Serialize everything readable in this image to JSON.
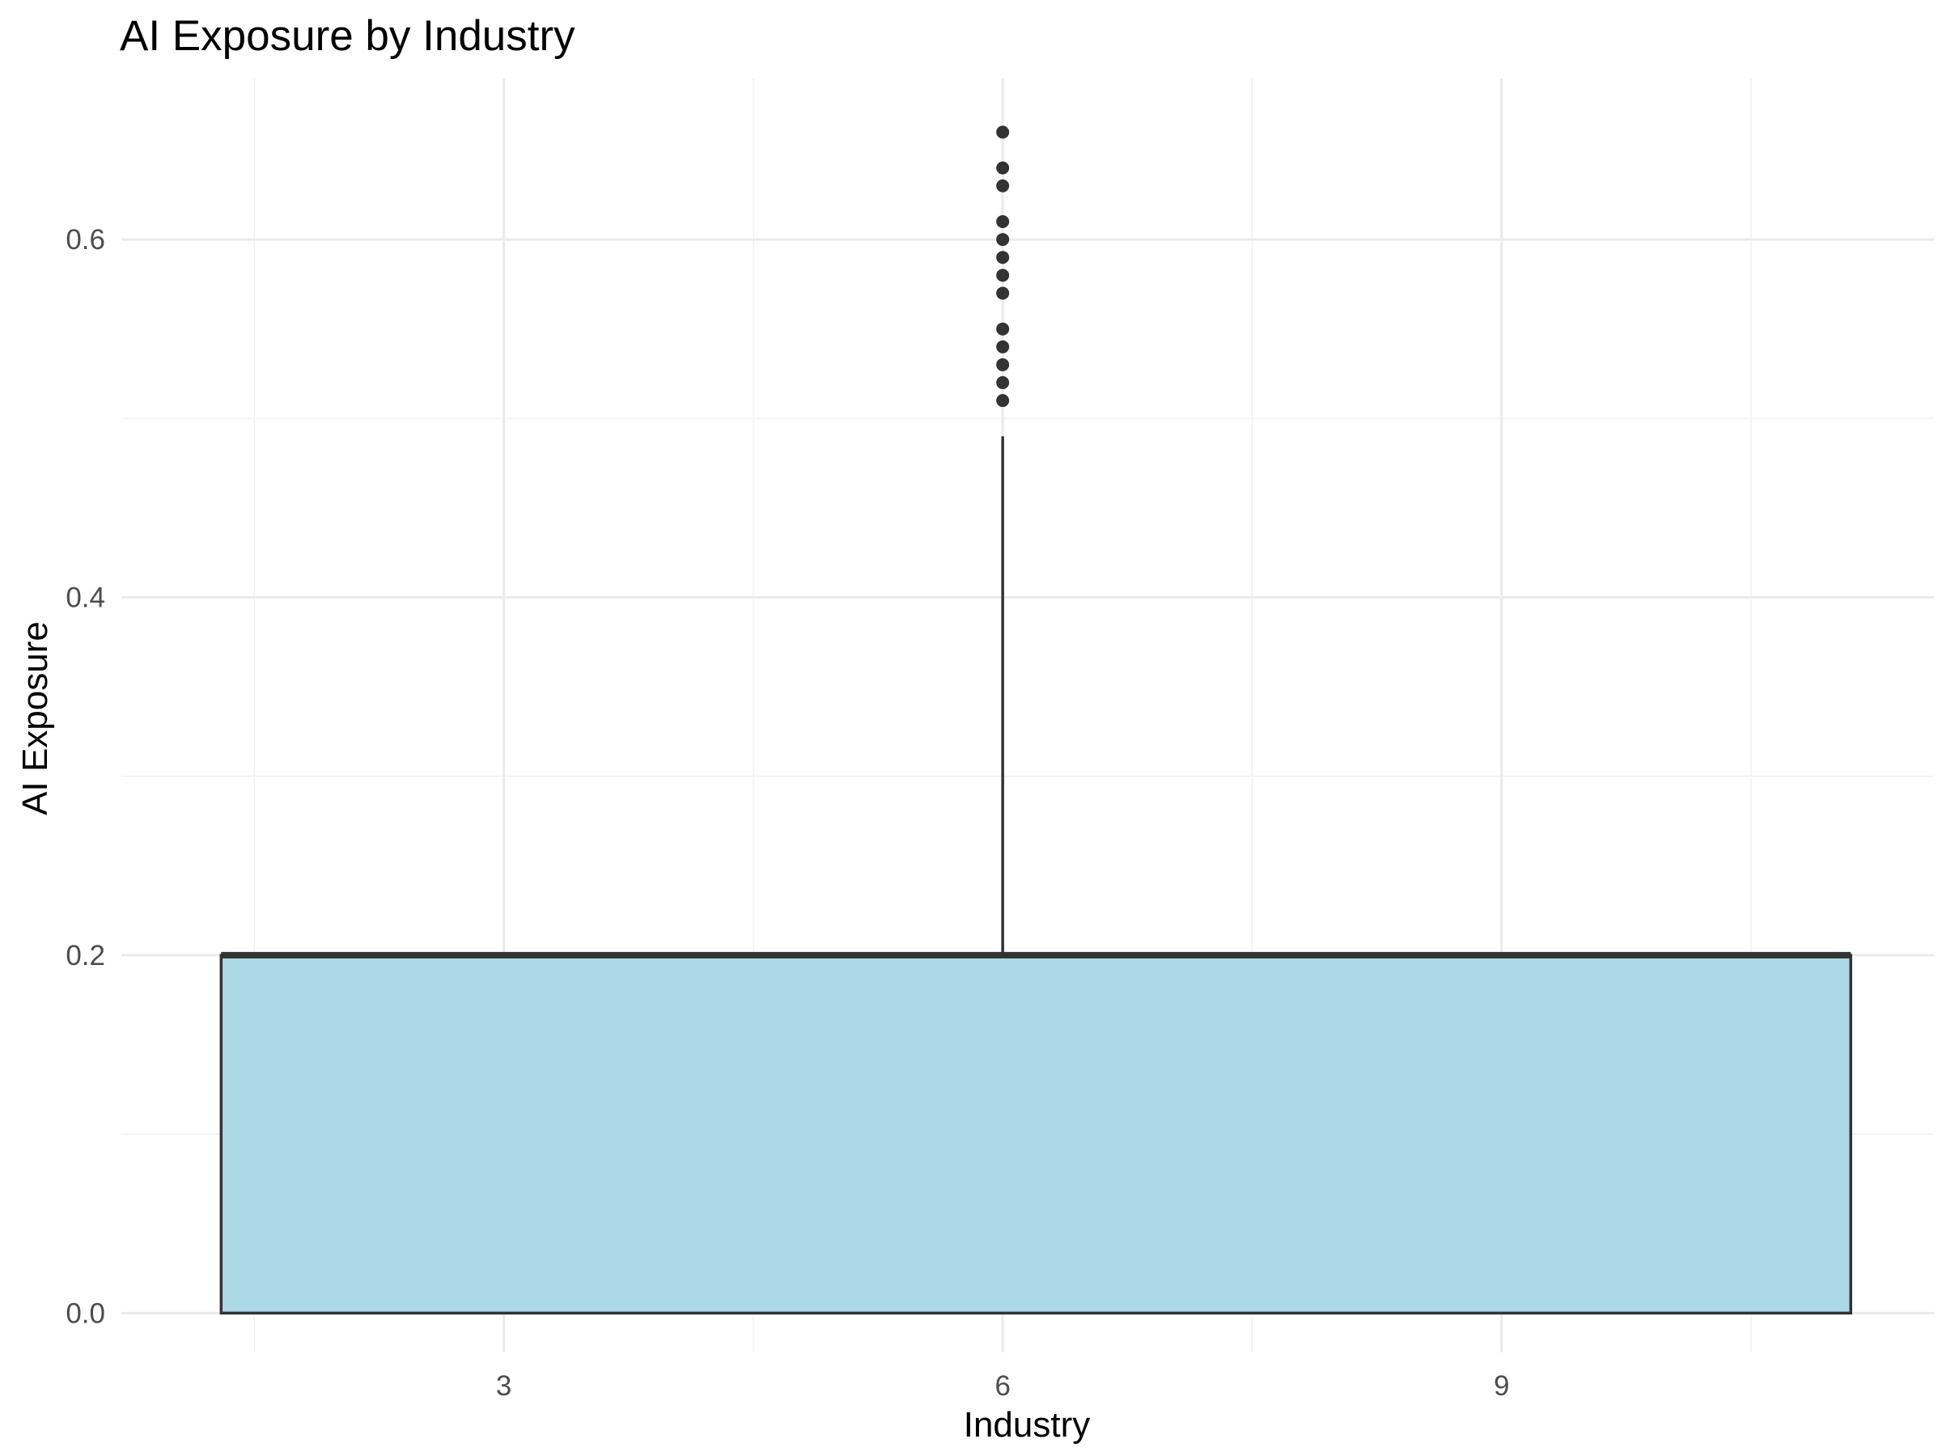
{
  "chart_data": {
    "type": "boxplot",
    "title": "AI Exposure by Industry",
    "xlabel": "Industry",
    "ylabel": "AI Exposure",
    "xlim": [
      0.7,
      11.6
    ],
    "ylim": [
      -0.022,
      0.69
    ],
    "x_ticks": [
      3,
      6,
      9
    ],
    "x_minor_ticks": [
      1.5,
      4.5,
      7.5,
      10.5
    ],
    "y_ticks": [
      0.0,
      0.2,
      0.4,
      0.6
    ],
    "y_minor_ticks": [
      0.1,
      0.3,
      0.5
    ],
    "grid": true,
    "box": {
      "center_x": 6,
      "x_min": 1.3,
      "x_max": 11.1,
      "q1": 0.0,
      "median": 0.2,
      "q3": 0.2,
      "whisker_low": 0.0,
      "whisker_high": 0.49,
      "outliers": [
        0.51,
        0.52,
        0.53,
        0.54,
        0.55,
        0.57,
        0.58,
        0.59,
        0.6,
        0.61,
        0.63,
        0.64,
        0.66
      ]
    },
    "colors": {
      "box_fill": "#add8e6",
      "box_stroke": "#333333",
      "outlier": "#333333"
    }
  }
}
